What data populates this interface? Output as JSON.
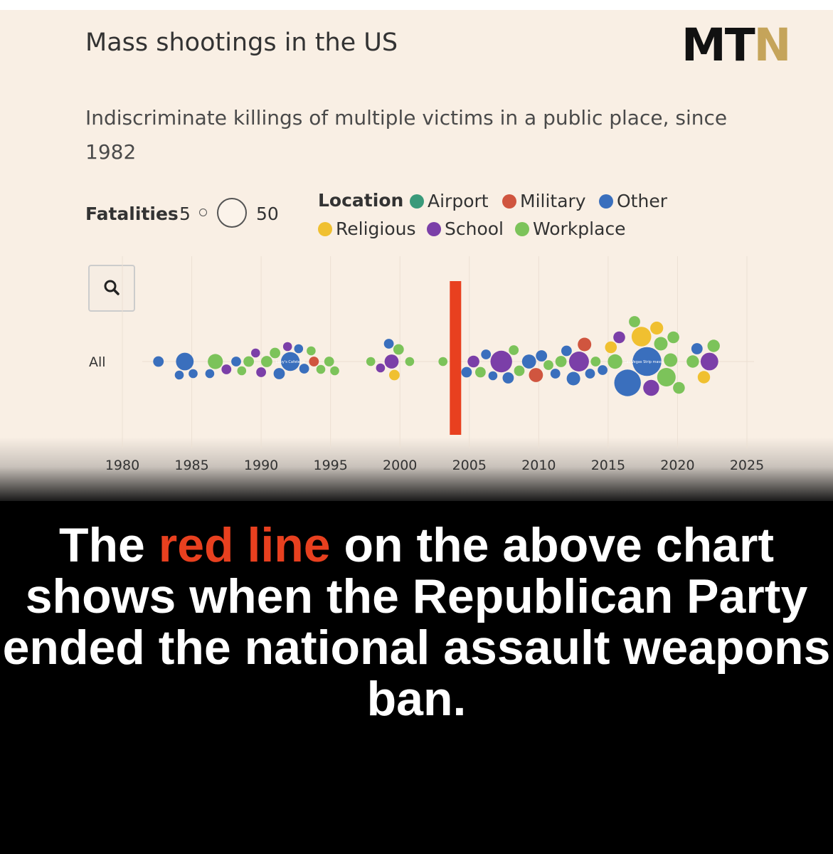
{
  "header": {
    "title": "Mass shootings in the US",
    "subtitle": "Indiscriminate killings of multiple victims in a public place, since 1982",
    "logo_main": "MT",
    "logo_accent": "N",
    "logo_accent_color": "#c5a45a"
  },
  "legend": {
    "fatalities_label": "Fatalities",
    "fatalities_min": "5",
    "fatalities_max": "50",
    "location_label": "Location",
    "items": [
      {
        "label": "Airport",
        "color": "#3a9a7a"
      },
      {
        "label": "Military",
        "color": "#d0553f"
      },
      {
        "label": "Other",
        "color": "#3a6fbd"
      },
      {
        "label": "Religious",
        "color": "#f0c030"
      },
      {
        "label": "School",
        "color": "#7b3fa8"
      },
      {
        "label": "Workplace",
        "color": "#7cc35a"
      }
    ]
  },
  "controls": {
    "search_icon": "search-icon"
  },
  "chart_data": {
    "type": "scatter",
    "row_label": "All",
    "x_ticks": [
      "1980",
      "1985",
      "1990",
      "1995",
      "2000",
      "2005",
      "2010",
      "2015",
      "2020",
      "2025"
    ],
    "xlim": [
      1980,
      2025
    ],
    "grid": true,
    "red_line_year": 2004,
    "red_line_color": "#e8401f",
    "point_labels": [
      "Luby's Cafeteria",
      "Las Vegas Strip massacre"
    ],
    "points_note": "each bubble is one shooting; size = fatalities, color = location; values estimated from the beeswarm",
    "points": [
      {
        "year": 1982.6,
        "fatalities": 7,
        "loc": "Other"
      },
      {
        "year": 1984.1,
        "fatalities": 5,
        "loc": "Other"
      },
      {
        "year": 1984.5,
        "fatalities": 21,
        "loc": "Other"
      },
      {
        "year": 1985.1,
        "fatalities": 5,
        "loc": "Other"
      },
      {
        "year": 1986.3,
        "fatalities": 5,
        "loc": "Other"
      },
      {
        "year": 1986.7,
        "fatalities": 15,
        "loc": "Workplace"
      },
      {
        "year": 1987.5,
        "fatalities": 6,
        "loc": "School"
      },
      {
        "year": 1988.2,
        "fatalities": 6,
        "loc": "Other"
      },
      {
        "year": 1988.6,
        "fatalities": 5,
        "loc": "Workplace"
      },
      {
        "year": 1989.1,
        "fatalities": 7,
        "loc": "Workplace"
      },
      {
        "year": 1989.6,
        "fatalities": 5,
        "loc": "School"
      },
      {
        "year": 1990.0,
        "fatalities": 6,
        "loc": "School"
      },
      {
        "year": 1990.4,
        "fatalities": 8,
        "loc": "Workplace"
      },
      {
        "year": 1991.0,
        "fatalities": 7,
        "loc": "Workplace"
      },
      {
        "year": 1991.3,
        "fatalities": 8,
        "loc": "Other"
      },
      {
        "year": 1991.9,
        "fatalities": 5,
        "loc": "School"
      },
      {
        "year": 1992.1,
        "fatalities": 24,
        "loc": "Other",
        "label": "Luby's Cafeteria"
      },
      {
        "year": 1992.7,
        "fatalities": 5,
        "loc": "Other"
      },
      {
        "year": 1993.1,
        "fatalities": 6,
        "loc": "Other"
      },
      {
        "year": 1993.6,
        "fatalities": 5,
        "loc": "Workplace"
      },
      {
        "year": 1993.8,
        "fatalities": 6,
        "loc": "Military"
      },
      {
        "year": 1994.3,
        "fatalities": 5,
        "loc": "Workplace"
      },
      {
        "year": 1994.9,
        "fatalities": 6,
        "loc": "Workplace"
      },
      {
        "year": 1995.3,
        "fatalities": 5,
        "loc": "Workplace"
      },
      {
        "year": 1997.9,
        "fatalities": 5,
        "loc": "Workplace"
      },
      {
        "year": 1998.6,
        "fatalities": 5,
        "loc": "School"
      },
      {
        "year": 1999.2,
        "fatalities": 6,
        "loc": "Other"
      },
      {
        "year": 1999.4,
        "fatalities": 13,
        "loc": "School"
      },
      {
        "year": 1999.6,
        "fatalities": 7,
        "loc": "Religious"
      },
      {
        "year": 1999.9,
        "fatalities": 7,
        "loc": "Workplace"
      },
      {
        "year": 2000.7,
        "fatalities": 5,
        "loc": "Workplace"
      },
      {
        "year": 2003.1,
        "fatalities": 5,
        "loc": "Workplace"
      },
      {
        "year": 2004.8,
        "fatalities": 7,
        "loc": "Other"
      },
      {
        "year": 2005.3,
        "fatalities": 9,
        "loc": "School"
      },
      {
        "year": 2005.8,
        "fatalities": 7,
        "loc": "Workplace"
      },
      {
        "year": 2006.2,
        "fatalities": 6,
        "loc": "Other"
      },
      {
        "year": 2006.7,
        "fatalities": 5,
        "loc": "Other"
      },
      {
        "year": 2007.3,
        "fatalities": 32,
        "loc": "School"
      },
      {
        "year": 2007.8,
        "fatalities": 8,
        "loc": "Other"
      },
      {
        "year": 2008.2,
        "fatalities": 6,
        "loc": "Workplace"
      },
      {
        "year": 2008.6,
        "fatalities": 7,
        "loc": "Workplace"
      },
      {
        "year": 2009.3,
        "fatalities": 13,
        "loc": "Other"
      },
      {
        "year": 2009.8,
        "fatalities": 13,
        "loc": "Military"
      },
      {
        "year": 2010.2,
        "fatalities": 8,
        "loc": "Other"
      },
      {
        "year": 2010.7,
        "fatalities": 6,
        "loc": "Workplace"
      },
      {
        "year": 2011.2,
        "fatalities": 6,
        "loc": "Other"
      },
      {
        "year": 2011.6,
        "fatalities": 8,
        "loc": "Workplace"
      },
      {
        "year": 2012.0,
        "fatalities": 7,
        "loc": "Other"
      },
      {
        "year": 2012.5,
        "fatalities": 12,
        "loc": "Other"
      },
      {
        "year": 2012.9,
        "fatalities": 27,
        "loc": "School"
      },
      {
        "year": 2013.3,
        "fatalities": 12,
        "loc": "Military"
      },
      {
        "year": 2013.7,
        "fatalities": 6,
        "loc": "Other"
      },
      {
        "year": 2014.1,
        "fatalities": 6,
        "loc": "Workplace"
      },
      {
        "year": 2014.6,
        "fatalities": 6,
        "loc": "Other"
      },
      {
        "year": 2015.2,
        "fatalities": 9,
        "loc": "Religious"
      },
      {
        "year": 2015.5,
        "fatalities": 14,
        "loc": "Workplace"
      },
      {
        "year": 2015.8,
        "fatalities": 9,
        "loc": "School"
      },
      {
        "year": 2016.4,
        "fatalities": 49,
        "loc": "Other"
      },
      {
        "year": 2016.9,
        "fatalities": 8,
        "loc": "Workplace"
      },
      {
        "year": 2017.4,
        "fatalities": 26,
        "loc": "Religious"
      },
      {
        "year": 2017.8,
        "fatalities": 58,
        "loc": "Other",
        "label": "Las Vegas Strip massacre"
      },
      {
        "year": 2018.1,
        "fatalities": 17,
        "loc": "School"
      },
      {
        "year": 2018.5,
        "fatalities": 11,
        "loc": "Religious"
      },
      {
        "year": 2018.8,
        "fatalities": 12,
        "loc": "Workplace"
      },
      {
        "year": 2019.2,
        "fatalities": 23,
        "loc": "Workplace"
      },
      {
        "year": 2019.5,
        "fatalities": 12,
        "loc": "Workplace"
      },
      {
        "year": 2019.7,
        "fatalities": 9,
        "loc": "Workplace"
      },
      {
        "year": 2020.1,
        "fatalities": 9,
        "loc": "Workplace"
      },
      {
        "year": 2021.1,
        "fatalities": 10,
        "loc": "Workplace"
      },
      {
        "year": 2021.4,
        "fatalities": 8,
        "loc": "Other"
      },
      {
        "year": 2021.9,
        "fatalities": 10,
        "loc": "Religious"
      },
      {
        "year": 2022.3,
        "fatalities": 21,
        "loc": "School"
      },
      {
        "year": 2022.6,
        "fatalities": 10,
        "loc": "Workplace"
      }
    ]
  },
  "headline": {
    "before": "The ",
    "highlight": "red line",
    "after": " on the above chart shows when the Republican Party ended the national assault weapons ban."
  }
}
